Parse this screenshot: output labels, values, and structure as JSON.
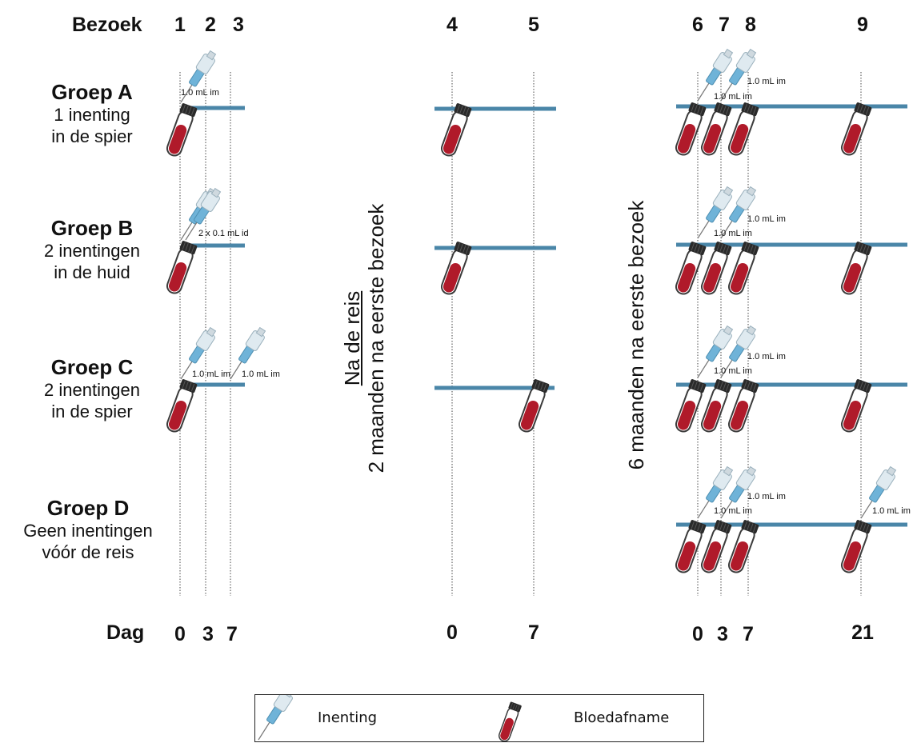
{
  "header": {
    "visit_label": "Bezoek",
    "day_label": "Dag"
  },
  "visits": [
    "1",
    "2",
    "3",
    "4",
    "5",
    "6",
    "7",
    "8",
    "9"
  ],
  "days": [
    "0",
    "3",
    "7",
    "0",
    "7",
    "0",
    "3",
    "7",
    "21"
  ],
  "groups": [
    {
      "name": "Groep A",
      "desc1": "1 inenting",
      "desc2": "in de spier"
    },
    {
      "name": "Groep B",
      "desc1": "2 inentingen",
      "desc2": "in de huid"
    },
    {
      "name": "Groep C",
      "desc1": "2 inentingen",
      "desc2": "in de spier"
    },
    {
      "name": "Groep D",
      "desc1": "Geen inentingen",
      "desc2": "vóór de reis"
    }
  ],
  "phases": {
    "trip": {
      "line1": "Na de reis",
      "line2": "2 maanden na eerste bezoek"
    },
    "six_months": {
      "line1": "6 maanden na eerste bezoek"
    }
  },
  "doses": {
    "a1": "1.0 mL im",
    "b1": "2 x 0.1 mL id",
    "c1": "1.0 mL im",
    "c2": "1.0 mL im",
    "late_first": "1.0 mL im",
    "late_second": "1.0 mL im",
    "d_day21": "1.0 mL im"
  },
  "legend": {
    "injection": "Inenting",
    "blood": "Bloedafname"
  },
  "colors": {
    "timeline": "#4a86a8",
    "tube_red": "#b01a2a",
    "tube_cap": "#2a2a2a",
    "syringe": "#9fcbe0"
  }
}
